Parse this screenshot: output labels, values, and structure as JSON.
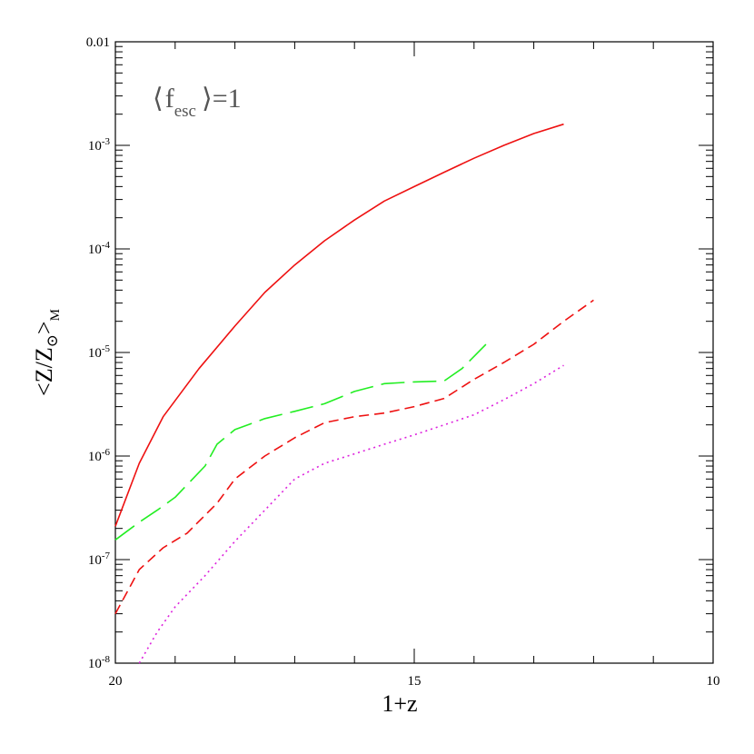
{
  "chart_data": {
    "type": "line",
    "xlabel": "1+z",
    "ylabel": "<Z/Z⊙>M",
    "ylabel_parts": {
      "main": "<Z/Z",
      "sun": "⊙",
      "close": ">",
      "sub": "M"
    },
    "annotation": {
      "open": "⟨",
      "f": "f",
      "sub": "esc",
      "close": "⟩=1"
    },
    "xlim": [
      20,
      10
    ],
    "ylim": [
      1e-08,
      0.01
    ],
    "y_scale": "log",
    "x_ticks": [
      20,
      15,
      10
    ],
    "x_tick_labels": [
      "20",
      "15",
      "10"
    ],
    "y_ticks": [
      1e-08,
      1e-07,
      1e-06,
      1e-05,
      0.0001,
      0.001,
      0.01
    ],
    "y_tick_labels": [
      {
        "base": "10",
        "exp": "-8"
      },
      {
        "base": "10",
        "exp": "-7"
      },
      {
        "base": "10",
        "exp": "-6"
      },
      {
        "base": "10",
        "exp": "-5"
      },
      {
        "base": "10",
        "exp": "-4"
      },
      {
        "base": "10",
        "exp": "-3"
      },
      {
        "base": "0.01",
        "exp": ""
      }
    ],
    "grid": false,
    "series": [
      {
        "style": "solid",
        "color": "#ee1111",
        "points": [
          [
            20,
            2.1e-07
          ],
          [
            19.6,
            8.5e-07
          ],
          [
            19.2,
            2.4e-06
          ],
          [
            18.6,
            7e-06
          ],
          [
            18,
            1.8e-05
          ],
          [
            17.5,
            3.8e-05
          ],
          [
            17,
            7e-05
          ],
          [
            16.5,
            0.00012
          ],
          [
            16,
            0.00019
          ],
          [
            15.5,
            0.00029
          ],
          [
            15,
            0.0004
          ],
          [
            14.5,
            0.00055
          ],
          [
            14,
            0.00075
          ],
          [
            13.5,
            0.001
          ],
          [
            13,
            0.0013
          ],
          [
            12.5,
            0.0016
          ]
        ]
      },
      {
        "style": "long-dash",
        "color": "#22ee22",
        "points": [
          [
            20,
            1.55e-07
          ],
          [
            19.6,
            2.3e-07
          ],
          [
            19.3,
            3e-07
          ],
          [
            19,
            4e-07
          ],
          [
            18.5,
            8e-07
          ],
          [
            18.3,
            1.3e-06
          ],
          [
            18,
            1.8e-06
          ],
          [
            17.5,
            2.3e-06
          ],
          [
            17,
            2.7e-06
          ],
          [
            16.5,
            3.2e-06
          ],
          [
            16,
            4.2e-06
          ],
          [
            15.5,
            5e-06
          ],
          [
            15,
            5.2e-06
          ],
          [
            14.5,
            5.3e-06
          ],
          [
            14.2,
            7e-06
          ],
          [
            13.8,
            1.2e-05
          ]
        ]
      },
      {
        "style": "short-dash",
        "color": "#ee1111",
        "points": [
          [
            20,
            3e-08
          ],
          [
            19.6,
            8e-08
          ],
          [
            19.2,
            1.3e-07
          ],
          [
            18.8,
            1.8e-07
          ],
          [
            18.3,
            3.5e-07
          ],
          [
            18,
            6e-07
          ],
          [
            17.5,
            1e-06
          ],
          [
            17,
            1.5e-06
          ],
          [
            16.5,
            2.1e-06
          ],
          [
            16,
            2.4e-06
          ],
          [
            15.5,
            2.6e-06
          ],
          [
            15,
            3e-06
          ],
          [
            14.5,
            3.6e-06
          ],
          [
            14,
            5.5e-06
          ],
          [
            13.5,
            8e-06
          ],
          [
            13,
            1.2e-05
          ],
          [
            12.5,
            2e-05
          ],
          [
            12,
            3.2e-05
          ]
        ]
      },
      {
        "style": "dotted",
        "color": "#dd22dd",
        "points": [
          [
            19.6,
            1e-08
          ],
          [
            19.3,
            2e-08
          ],
          [
            19,
            3.5e-08
          ],
          [
            18.5,
            7e-08
          ],
          [
            18,
            1.5e-07
          ],
          [
            17.5,
            3e-07
          ],
          [
            17,
            6e-07
          ],
          [
            16.5,
            8.5e-07
          ],
          [
            16,
            1.05e-06
          ],
          [
            15.5,
            1.3e-06
          ],
          [
            15,
            1.6e-06
          ],
          [
            14.5,
            2e-06
          ],
          [
            14,
            2.5e-06
          ],
          [
            13.5,
            3.5e-06
          ],
          [
            13,
            5e-06
          ],
          [
            12.5,
            7.5e-06
          ]
        ]
      }
    ]
  }
}
